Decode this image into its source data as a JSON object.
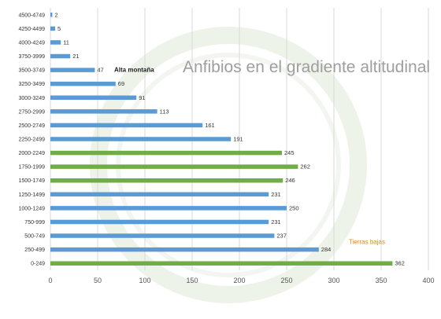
{
  "chart_data": {
    "type": "bar",
    "orientation": "horizontal",
    "title": "Anfibios en el gradiente altitudinal",
    "categories": [
      "4500-4749",
      "4250-4499",
      "4000-4249",
      "3750-3999",
      "3500-3749",
      "3250-3499",
      "3000-3249",
      "2750-2999",
      "2500-2749",
      "2250-2499",
      "2000-2249",
      "1750-1999",
      "1500-1749",
      "1250-1499",
      "1000-1249",
      "750-999",
      "500-749",
      "250-499",
      "0-249"
    ],
    "values": [
      2,
      5,
      11,
      21,
      47,
      69,
      91,
      113,
      161,
      191,
      245,
      262,
      246,
      231,
      250,
      231,
      237,
      284,
      362
    ],
    "bar_colors": [
      "#5b9bd5",
      "#5b9bd5",
      "#5b9bd5",
      "#5b9bd5",
      "#5b9bd5",
      "#5b9bd5",
      "#5b9bd5",
      "#5b9bd5",
      "#5b9bd5",
      "#5b9bd5",
      "#70ad47",
      "#70ad47",
      "#70ad47",
      "#5b9bd5",
      "#5b9bd5",
      "#5b9bd5",
      "#5b9bd5",
      "#5b9bd5",
      "#70ad47"
    ],
    "xlim": [
      0,
      400
    ],
    "xticks": [
      0,
      50,
      100,
      150,
      200,
      250,
      300,
      350,
      400
    ],
    "grid": true,
    "annotations": [
      {
        "text": "Alta montaña",
        "category": "3500-3749",
        "color": "#222222"
      },
      {
        "text": "Tierras bajas",
        "category": "250-499",
        "color": "#d98b1e"
      }
    ]
  }
}
